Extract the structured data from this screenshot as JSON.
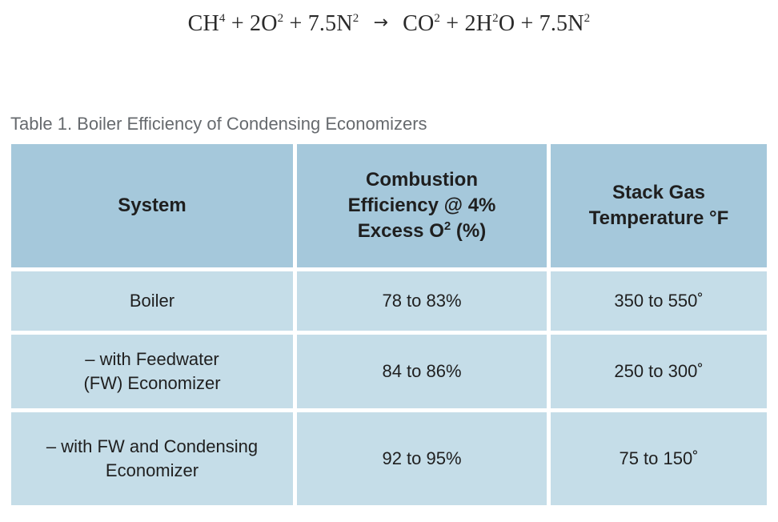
{
  "equation": {
    "lhs_1": "CH",
    "lhs_1_sup": "4",
    "lhs_2": " + 2O",
    "lhs_2_sup": "2",
    "lhs_3": " + 7.5N",
    "lhs_3_sup": "2",
    "arrow": "→",
    "rhs_1": "CO",
    "rhs_1_sup": "2",
    "rhs_2": " + 2H",
    "rhs_2_sup": "2",
    "rhs_3": "O + 7.5N",
    "rhs_3_sup": "2"
  },
  "caption": "Table 1. Boiler Efficiency of Condensing Economizers",
  "table": {
    "headers": {
      "system": "System",
      "combustion_line1": "Combustion",
      "combustion_line2": "Efficiency @ 4%",
      "combustion_line3_pre": "Excess O",
      "combustion_line3_sup": "2",
      "combustion_line3_post": " (%)",
      "stack_line1": "Stack Gas",
      "stack_line2": "Temperature °F"
    },
    "rows": [
      {
        "system_line1": "Boiler",
        "system_line2": "",
        "efficiency": "78 to 83%",
        "temperature": "350 to 550˚"
      },
      {
        "system_line1": "– with Feedwater",
        "system_line2": "(FW) Economizer",
        "efficiency": "84 to 86%",
        "temperature": "250 to 300˚"
      },
      {
        "system_line1": "– with FW and Condensing",
        "system_line2": "Economizer",
        "efficiency": "92 to 95%",
        "temperature": "75 to 150˚"
      }
    ]
  },
  "colors": {
    "header_bg": "#a5c8db",
    "cell_bg": "#c5dde8",
    "caption_text": "#666a6e"
  }
}
